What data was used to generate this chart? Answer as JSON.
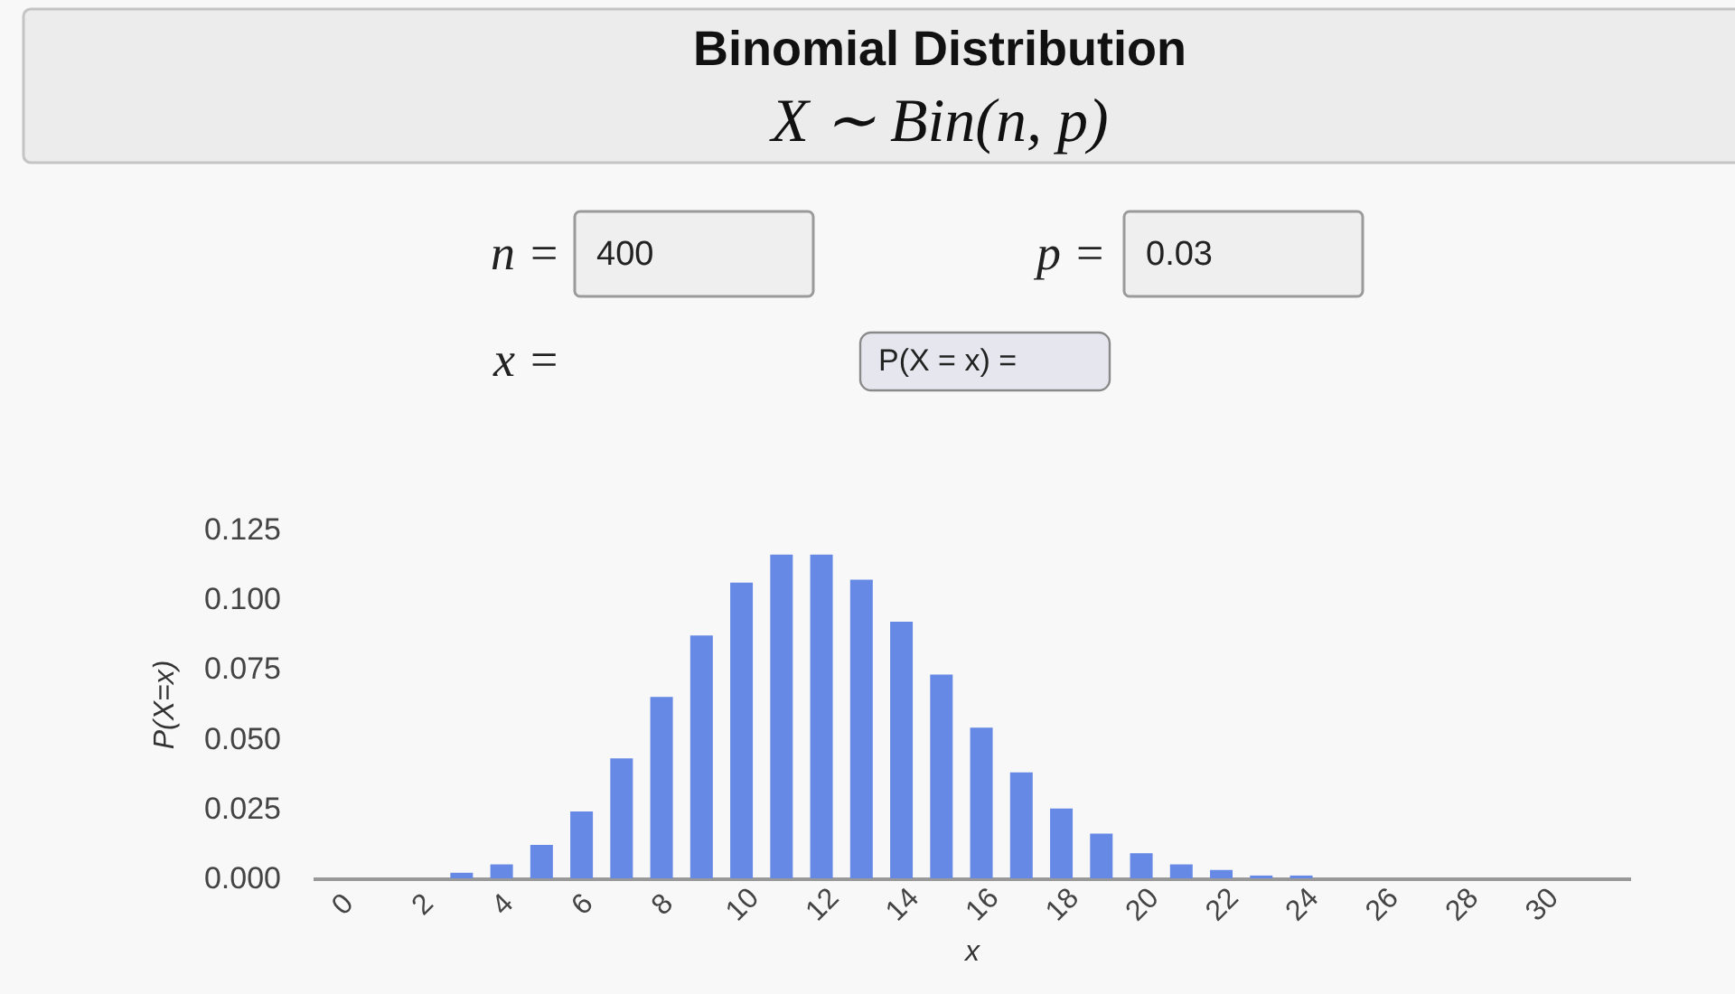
{
  "chart_data": [
    {
      "type": "other",
      "title": "Binomial Distribution",
      "subtitle": "X ∼ Bin(n, p)",
      "annotations": [
        "n =",
        "400",
        "p =",
        "0.03",
        "x =",
        "P(X = x)  ="
      ]
    },
    {
      "type": "bar",
      "x": [
        0,
        1,
        2,
        3,
        4,
        5,
        6,
        7,
        8,
        9,
        10,
        11,
        12,
        13,
        14,
        15,
        16,
        17,
        18,
        19,
        20,
        21,
        22,
        23,
        24,
        25,
        26,
        27,
        28,
        29,
        30,
        31
      ],
      "values": [
        0.0,
        0.0,
        0.0,
        0.002,
        0.005,
        0.012,
        0.024,
        0.043,
        0.065,
        0.087,
        0.106,
        0.116,
        0.116,
        0.107,
        0.092,
        0.073,
        0.054,
        0.038,
        0.025,
        0.016,
        0.009,
        0.005,
        0.003,
        0.001,
        0.001,
        0.0,
        0.0,
        0.0,
        0.0,
        0.0,
        0.0,
        0.0
      ],
      "color": "#6689e6",
      "xlabel": "x",
      "ylabel": "P(X=x)",
      "xlim": [
        -0.5,
        32
      ],
      "xticks": [
        0,
        2,
        4,
        6,
        8,
        10,
        12,
        14,
        16,
        18,
        20,
        22,
        24,
        26,
        28,
        30
      ],
      "ylim": [
        0,
        0.125
      ],
      "yticks": [
        {
          "value": 0,
          "label": "0.000"
        },
        {
          "value": 0.025,
          "label": "0.025"
        },
        {
          "value": 0.05,
          "label": "0.050"
        },
        {
          "value": 0.075,
          "label": "0.075"
        },
        {
          "value": 0.1,
          "label": "0.100"
        },
        {
          "value": 0.125,
          "label": "0.125"
        }
      ]
    }
  ]
}
